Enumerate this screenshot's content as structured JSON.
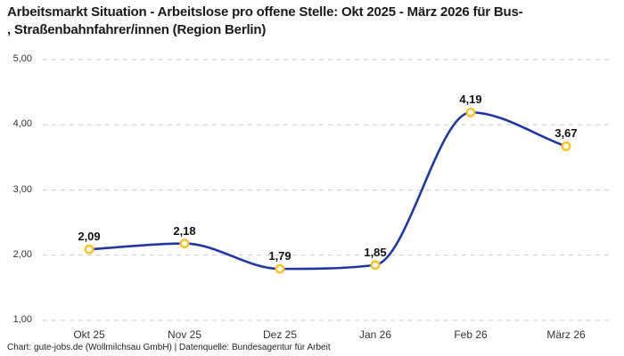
{
  "title": {
    "line1": "Arbeitsmarkt Situation - Arbeitslose pro offene Stelle: Okt 2025 - März 2026 für Bus-",
    "line2": ", Straßenbahnfahrer/innen (Region Berlin)"
  },
  "footer": {
    "text": "Chart: gute-jobs.de (Wollmilchsau GmbH) | Datenquelle: Bundesagentur für Arbeit"
  },
  "chart_data": {
    "type": "line",
    "title": "Arbeitsmarkt Situation - Arbeitslose pro offene Stelle: Okt 2025 - März 2026 für Bus-, Straßenbahnfahrer/innen (Region Berlin)",
    "categories": [
      "Okt 25",
      "Nov 25",
      "Dez 25",
      "Jan 26",
      "Feb 26",
      "März 26"
    ],
    "values": [
      2.09,
      2.18,
      1.79,
      1.85,
      4.19,
      3.67
    ],
    "point_labels": [
      "2,09",
      "2,18",
      "1,79",
      "1,85",
      "4,19",
      "3,67"
    ],
    "y_ticks": [
      {
        "value": 5,
        "label": "5,00"
      },
      {
        "value": 4,
        "label": "4,00"
      },
      {
        "value": 3,
        "label": "3,00"
      },
      {
        "value": 2,
        "label": "2,00"
      },
      {
        "value": 1,
        "label": "1,00"
      }
    ],
    "ylim": [
      1,
      5
    ],
    "xlabel": "",
    "ylabel": "",
    "legend": "none",
    "grid": "dashed-horizontal",
    "style": {
      "line_color": "#2138a3",
      "marker_ring_color": "#ffc32b",
      "marker_fill_color": "#ffffff",
      "grid_color": "#c9c9c9"
    }
  }
}
